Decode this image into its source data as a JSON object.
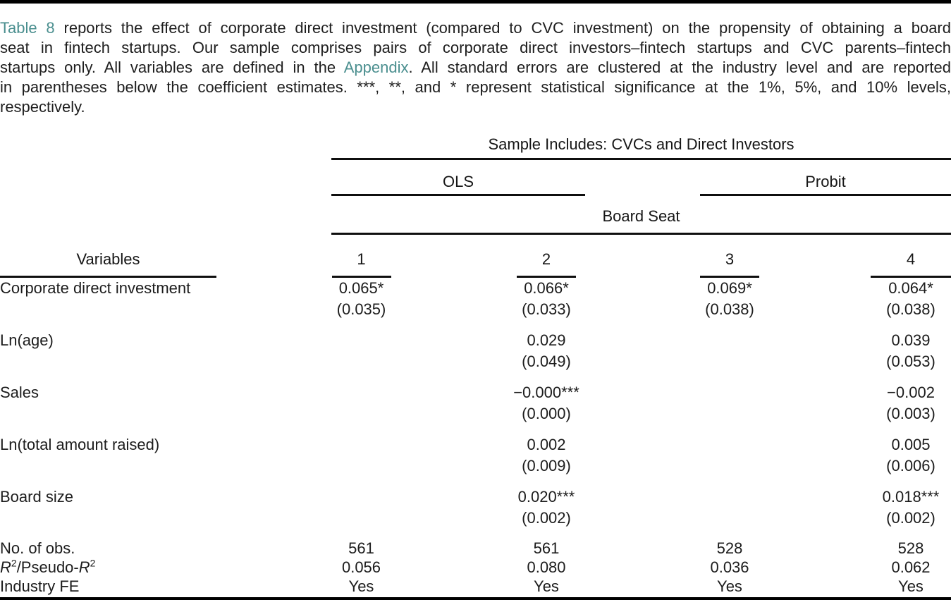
{
  "colors": {
    "link_teal": "#4b8f8f",
    "rule_black": "#0f0f0f"
  },
  "caption": {
    "table_link": "Table 8",
    "line1_rest": " reports the effect of corporate direct investment (compared to CVC investment) on the propensity of obtaining a board",
    "line2": "seat in fintech startups. Our sample comprises pairs of corporate direct investors–fintech startups and CVC parents–fintech",
    "line3_pre": "startups only. All variables are defined in the ",
    "appendix_link": "Appendix",
    "line3_post": ". All standard errors are clustered at the industry level and are reported",
    "line4": "in parentheses below the coefficient estimates. ***, **, and * represent statistical significance at the 1%, 5%, and 10% levels,",
    "line5": "respectively."
  },
  "table": {
    "sample_header": "Sample Includes: CVCs and Direct Investors",
    "method_headers": {
      "ols": "OLS",
      "probit": "Probit"
    },
    "dep_var_header": "Board Seat",
    "variables_header": "Variables",
    "column_numbers": {
      "c1": "1",
      "c2": "2",
      "c3": "3",
      "c4": "4"
    },
    "rows": [
      {
        "label": "Corporate direct investment",
        "cells": [
          {
            "coef": "0.065*",
            "se": "(0.035)"
          },
          {
            "coef": "0.066*",
            "se": "(0.033)"
          },
          {
            "coef": "0.069*",
            "se": "(0.038)"
          },
          {
            "coef": "0.064*",
            "se": "(0.038)"
          }
        ]
      },
      {
        "label": "Ln(age)",
        "cells": [
          {
            "coef": "",
            "se": ""
          },
          {
            "coef": "0.029",
            "se": "(0.049)"
          },
          {
            "coef": "",
            "se": ""
          },
          {
            "coef": "0.039",
            "se": "(0.053)"
          }
        ]
      },
      {
        "label": "Sales",
        "cells": [
          {
            "coef": "",
            "se": ""
          },
          {
            "coef": "−0.000***",
            "se": "(0.000)"
          },
          {
            "coef": "",
            "se": ""
          },
          {
            "coef": "−0.002",
            "se": "(0.003)"
          }
        ]
      },
      {
        "label": "Ln(total amount raised)",
        "cells": [
          {
            "coef": "",
            "se": ""
          },
          {
            "coef": "0.002",
            "se": "(0.009)"
          },
          {
            "coef": "",
            "se": ""
          },
          {
            "coef": "0.005",
            "se": "(0.006)"
          }
        ]
      },
      {
        "label": "Board size",
        "cells": [
          {
            "coef": "",
            "se": ""
          },
          {
            "coef": "0.020***",
            "se": "(0.002)"
          },
          {
            "coef": "",
            "se": ""
          },
          {
            "coef": "0.018***",
            "se": "(0.002)"
          }
        ]
      }
    ],
    "stats": {
      "obs": {
        "label": "No. of obs.",
        "values": [
          "561",
          "561",
          "528",
          "528"
        ]
      },
      "r2": {
        "r1": "R",
        "s1": "2",
        "mid": "/Pseudo-",
        "r2": "R",
        "s2": "2",
        "values": [
          "0.056",
          "0.080",
          "0.036",
          "0.062"
        ]
      },
      "fe": {
        "label": "Industry FE",
        "values": [
          "Yes",
          "Yes",
          "Yes",
          "Yes"
        ]
      }
    }
  }
}
